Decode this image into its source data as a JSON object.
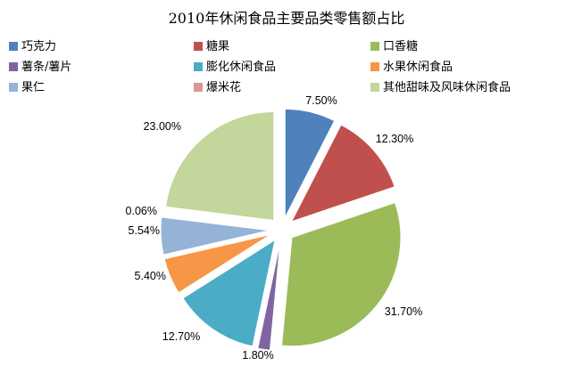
{
  "chart_data": {
    "type": "pie",
    "title": "2010年休闲食品主要品类零售额占比",
    "legend_position": "top",
    "categories": [
      "巧克力",
      "糖果",
      "口香糖",
      "薯条/薯片",
      "膨化休闲食品",
      "水果休闲食品",
      "果仁",
      "爆米花",
      "其他甜味及风味休闲食品"
    ],
    "values": [
      7.5,
      12.3,
      31.7,
      1.8,
      12.7,
      5.4,
      5.54,
      0.06,
      23.0
    ],
    "labels": [
      "7.50%",
      "12.30%",
      "31.70%",
      "1.80%",
      "12.70%",
      "5.40%",
      "5.54%",
      "0.06%",
      "23.00%"
    ],
    "colors": [
      "#4F81BD",
      "#C0504D",
      "#9BBB59",
      "#8064A2",
      "#4BACC6",
      "#F79646",
      "#95B3D7",
      "#D99694",
      "#C3D69B"
    ],
    "exploded": true
  }
}
